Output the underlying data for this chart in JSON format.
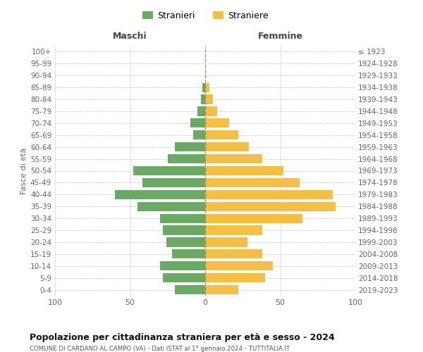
{
  "age_groups": [
    "0-4",
    "5-9",
    "10-14",
    "15-19",
    "20-24",
    "25-29",
    "30-34",
    "35-39",
    "40-44",
    "45-49",
    "50-54",
    "55-59",
    "60-64",
    "65-69",
    "70-74",
    "75-79",
    "80-84",
    "85-89",
    "90-94",
    "95-99",
    "100+"
  ],
  "birth_years": [
    "2019-2023",
    "2014-2018",
    "2009-2013",
    "2004-2008",
    "1999-2003",
    "1994-1998",
    "1989-1993",
    "1984-1988",
    "1979-1983",
    "1974-1978",
    "1969-1973",
    "1964-1968",
    "1959-1963",
    "1954-1958",
    "1949-1953",
    "1944-1948",
    "1939-1943",
    "1934-1938",
    "1929-1933",
    "1924-1928",
    "≤ 1923"
  ],
  "males": [
    20,
    28,
    30,
    22,
    26,
    28,
    30,
    45,
    60,
    42,
    48,
    25,
    20,
    8,
    10,
    5,
    3,
    2,
    0,
    0,
    0
  ],
  "females": [
    22,
    40,
    45,
    38,
    28,
    38,
    65,
    87,
    85,
    63,
    52,
    38,
    29,
    22,
    16,
    8,
    5,
    3,
    0,
    0,
    0
  ],
  "male_color": "#6aaa64",
  "female_color": "#f5bf45",
  "background_color": "#ffffff",
  "grid_color": "#cccccc",
  "title": "Popolazione per cittadinanza straniera per età e sesso - 2024",
  "subtitle": "COMUNE DI CARDANO AL CAMPO (VA) - Dati ISTAT al 1° gennaio 2024 - TUTTITALIA.IT",
  "left_label": "Maschi",
  "right_label": "Femmine",
  "left_axis_label": "Fasce di età",
  "legend_male": "Stranieri",
  "legend_female": "Straniere",
  "xlim": 100,
  "dashed_color": "#888866"
}
